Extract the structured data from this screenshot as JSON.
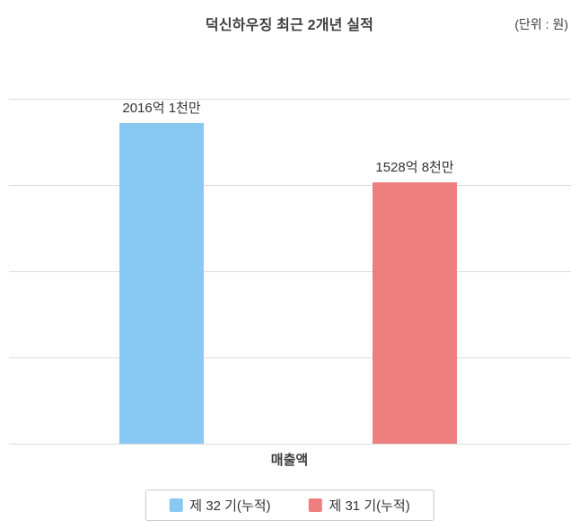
{
  "title": "덕신하우징 최근 2개년 실적",
  "unit_label": "(단위 : 원)",
  "chart_data": {
    "type": "bar",
    "title": "덕신하우징 최근 2개년 실적",
    "unit": "원",
    "categories": [
      "매출액"
    ],
    "series": [
      {
        "name": "제 32 기(누적)",
        "label": "2016억 1천만",
        "value": 201610000000,
        "color": "#87c9f3"
      },
      {
        "name": "제 31 기(누적)",
        "label": "1528억 8천만",
        "value": 152880000000,
        "color": "#ee7d7d"
      }
    ],
    "ylim": [
      0,
      201610000000
    ],
    "grid": true,
    "gridline_count": 5,
    "legend_position": "bottom"
  }
}
